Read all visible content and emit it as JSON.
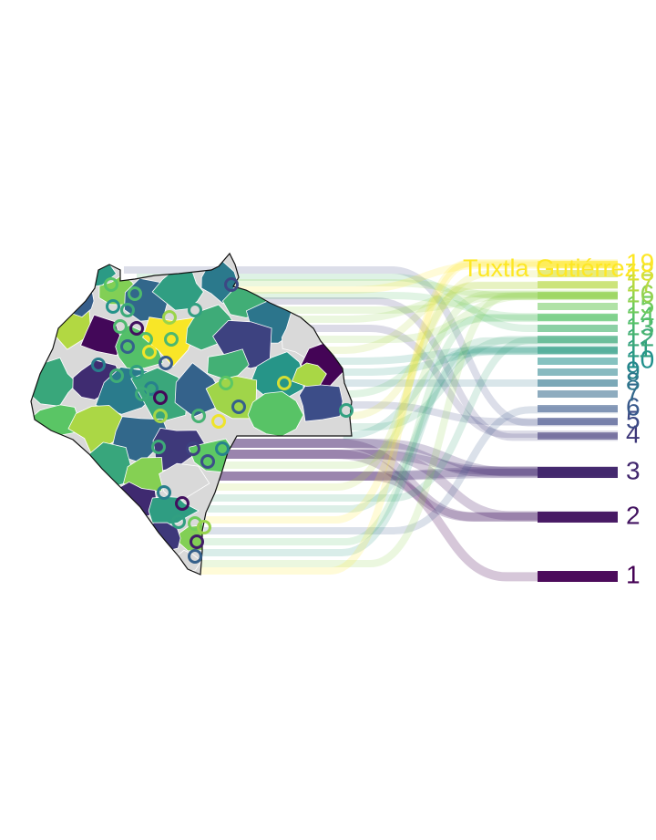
{
  "chart_data": {
    "type": "map",
    "title": "",
    "annotation": "Tuxtla Gutiérrez",
    "rank_labels": [
      "1",
      "2",
      "3",
      "4",
      "5",
      "6",
      "7",
      "8",
      "9",
      "10",
      "11",
      "12",
      "13",
      "14",
      "15",
      "16",
      "17",
      "18",
      "19"
    ],
    "palette": [
      "#440154",
      "#3b528b",
      "#21908c",
      "#5dc863",
      "#fde725"
    ],
    "no_data_color": "#d9d9d9",
    "border_color": "#111111"
  }
}
